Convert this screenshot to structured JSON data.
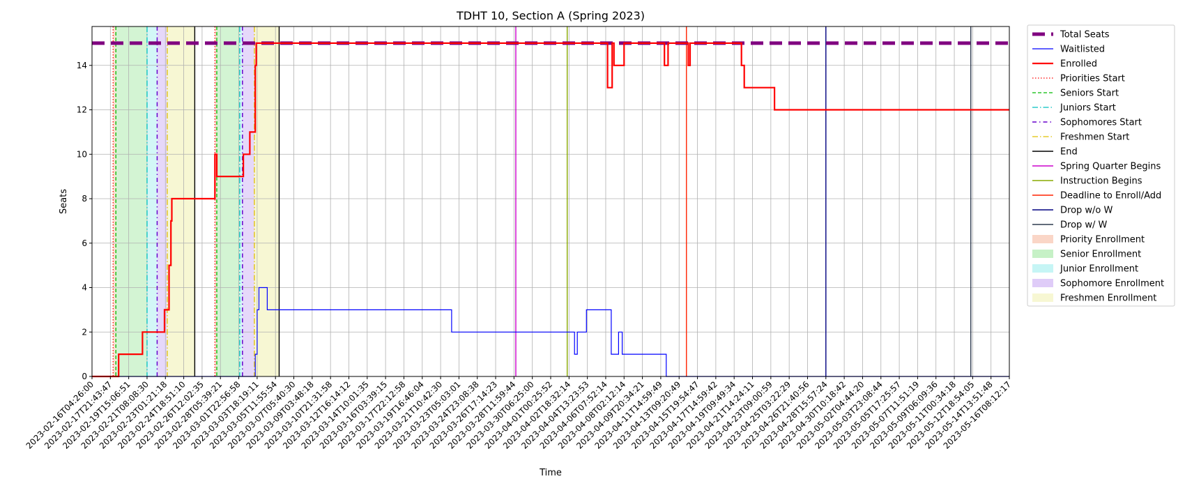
{
  "chart_data": {
    "type": "line",
    "title": "TDHT 10, Section A (Spring 2023)",
    "xlabel": "Time",
    "ylabel": "Seats",
    "ylim": [
      0,
      15.75
    ],
    "yticks": [
      0,
      2,
      4,
      6,
      8,
      10,
      12,
      14
    ],
    "grid": true,
    "legend_position": "outside-right",
    "x_tick_labels": [
      "2023-02-16T04:26:00",
      "2023-02-17T21:43:47",
      "2023-02-19T15:06:51",
      "2023-02-21T08:08:30",
      "2023-02-23T01:21:18",
      "2023-02-24T18:51:10",
      "2023-02-26T12:02:35",
      "2023-02-28T05:39:21",
      "2023-03-01T22:56:58",
      "2023-03-03T18:19:11",
      "2023-03-05T11:55:54",
      "2023-03-07T05:40:30",
      "2023-03-09T03:48:18",
      "2023-03-10T21:31:58",
      "2023-03-12T16:14:12",
      "2023-03-14T10:01:35",
      "2023-03-16T03:39:15",
      "2023-03-17T22:12:58",
      "2023-03-19T16:46:04",
      "2023-03-21T10:42:30",
      "2023-03-23T05:03:01",
      "2023-03-24T23:08:38",
      "2023-03-26T17:14:23",
      "2023-03-28T11:59:44",
      "2023-03-30T06:25:00",
      "2023-04-01T00:25:52",
      "2023-04-02T18:32:14",
      "2023-04-04T13:23:53",
      "2023-04-06T07:52:14",
      "2023-04-08T02:12:14",
      "2023-04-09T20:34:21",
      "2023-04-11T14:59:49",
      "2023-04-13T09:20:49",
      "2023-04-15T19:54:47",
      "2023-04-17T14:59:42",
      "2023-04-19T09:49:34",
      "2023-04-21T14:24:11",
      "2023-04-23T09:00:59",
      "2023-04-25T03:22:29",
      "2023-04-26T21:40:56",
      "2023-04-28T15:57:24",
      "2023-04-30T10:18:42",
      "2023-05-02T04:44:20",
      "2023-05-03T23:08:44",
      "2023-05-05T17:25:57",
      "2023-05-07T11:51:19",
      "2023-05-09T06:09:36",
      "2023-05-11T00:34:18",
      "2023-05-12T18:54:05",
      "2023-05-14T13:51:48",
      "2023-05-16T08:12:17"
    ],
    "x_tick_index": [
      0,
      1,
      2,
      3,
      4,
      5,
      6,
      7,
      8,
      9,
      10,
      11,
      12,
      13,
      14,
      15,
      16,
      17,
      18,
      19,
      20,
      21,
      22,
      23,
      24,
      25,
      26,
      27,
      28,
      29,
      30,
      31,
      32,
      33,
      34,
      35,
      36,
      37,
      38,
      39,
      40,
      41,
      42,
      43,
      44,
      45,
      46,
      47,
      48,
      49,
      50
    ],
    "series": [
      {
        "name": "Total Seats",
        "color": "#800080",
        "style": "dashed-thick",
        "points": [
          [
            0,
            15
          ],
          [
            50,
            15
          ]
        ]
      },
      {
        "name": "Waitlisted",
        "color": "#0000ff",
        "style": "solid-thin",
        "points": [
          [
            0,
            0
          ],
          [
            8.9,
            0
          ],
          [
            8.9,
            1
          ],
          [
            9.0,
            1
          ],
          [
            9.0,
            3
          ],
          [
            9.1,
            3
          ],
          [
            9.1,
            4
          ],
          [
            9.55,
            4
          ],
          [
            9.55,
            3
          ],
          [
            19.6,
            3
          ],
          [
            19.6,
            2
          ],
          [
            26.3,
            2
          ],
          [
            26.3,
            1
          ],
          [
            26.45,
            1
          ],
          [
            26.45,
            2
          ],
          [
            26.95,
            2
          ],
          [
            26.95,
            3
          ],
          [
            28.3,
            3
          ],
          [
            28.3,
            1
          ],
          [
            28.7,
            1
          ],
          [
            28.7,
            2
          ],
          [
            28.9,
            2
          ],
          [
            28.9,
            1
          ],
          [
            31.3,
            1
          ],
          [
            31.3,
            0
          ],
          [
            50,
            0
          ]
        ]
      },
      {
        "name": "Enrolled",
        "color": "#ff0000",
        "style": "solid-thick",
        "points": [
          [
            0,
            0
          ],
          [
            1.45,
            0
          ],
          [
            1.45,
            1
          ],
          [
            2.75,
            1
          ],
          [
            2.75,
            2
          ],
          [
            3.95,
            2
          ],
          [
            3.95,
            3
          ],
          [
            4.2,
            3
          ],
          [
            4.2,
            5
          ],
          [
            4.3,
            5
          ],
          [
            4.3,
            7
          ],
          [
            4.35,
            7
          ],
          [
            4.35,
            8
          ],
          [
            6.7,
            8
          ],
          [
            6.7,
            10
          ],
          [
            6.8,
            10
          ],
          [
            6.8,
            9
          ],
          [
            8.25,
            9
          ],
          [
            8.25,
            10
          ],
          [
            8.6,
            10
          ],
          [
            8.6,
            11
          ],
          [
            8.9,
            11
          ],
          [
            8.9,
            14
          ],
          [
            8.95,
            14
          ],
          [
            8.95,
            15
          ],
          [
            28.1,
            15
          ],
          [
            28.1,
            13
          ],
          [
            28.35,
            13
          ],
          [
            28.35,
            15
          ],
          [
            28.45,
            15
          ],
          [
            28.45,
            14
          ],
          [
            29.0,
            14
          ],
          [
            29.0,
            15
          ],
          [
            31.2,
            15
          ],
          [
            31.2,
            14
          ],
          [
            31.4,
            14
          ],
          [
            31.4,
            15
          ],
          [
            32.5,
            15
          ],
          [
            32.5,
            14
          ],
          [
            32.6,
            14
          ],
          [
            32.6,
            15
          ],
          [
            35.4,
            15
          ],
          [
            35.4,
            14
          ],
          [
            35.55,
            14
          ],
          [
            35.55,
            13
          ],
          [
            37.2,
            13
          ],
          [
            37.2,
            12
          ],
          [
            50,
            12
          ]
        ]
      }
    ],
    "event_lines": [
      {
        "name": "Priorities Start",
        "color": "#ff0000",
        "style": "dotted",
        "x": [
          1.15,
          6.7
        ]
      },
      {
        "name": "Seniors Start",
        "color": "#00bb00",
        "style": "dashed",
        "x": [
          1.3,
          6.8
        ]
      },
      {
        "name": "Juniors Start",
        "color": "#00bfbf",
        "style": "dashdot",
        "x": [
          3.0,
          8.05
        ]
      },
      {
        "name": "Sophomores Start",
        "color": "#6600cc",
        "style": "dashdot2",
        "x": [
          3.55,
          8.2
        ]
      },
      {
        "name": "Freshmen Start",
        "color": "#e0c000",
        "style": "dashdot",
        "x": [
          4.1,
          8.85
        ]
      },
      {
        "name": "End",
        "color": "#000000",
        "style": "solid",
        "x": [
          5.6,
          10.2
        ]
      },
      {
        "name": "Spring Quarter Begins",
        "color": "#cc00cc",
        "style": "solid",
        "x": [
          23.1
        ]
      },
      {
        "name": "Instruction Begins",
        "color": "#88aa00",
        "style": "solid",
        "x": [
          25.9
        ]
      },
      {
        "name": "Deadline to Enroll/Add",
        "color": "#ff2200",
        "style": "solid",
        "x": [
          32.4
        ]
      },
      {
        "name": "Drop w/o W",
        "color": "#000080",
        "style": "solid",
        "x": [
          40.0
        ]
      },
      {
        "name": "Drop w/ W",
        "color": "#2f3b4f",
        "style": "solid",
        "x": [
          47.9
        ]
      }
    ],
    "shaded_regions": [
      {
        "name": "Priority Enrollment",
        "color": "#f4a582",
        "opacity": 0.35,
        "ranges": [
          [
            1.15,
            1.3
          ],
          [
            6.7,
            6.8
          ]
        ]
      },
      {
        "name": "Senior Enrollment",
        "color": "#80e080",
        "opacity": 0.35,
        "ranges": [
          [
            1.3,
            3.0
          ],
          [
            6.8,
            8.05
          ]
        ]
      },
      {
        "name": "Junior Enrollment",
        "color": "#80e8e8",
        "opacity": 0.35,
        "ranges": [
          [
            3.0,
            3.55
          ],
          [
            8.05,
            8.2
          ]
        ]
      },
      {
        "name": "Sophomore Enrollment",
        "color": "#b88ff0",
        "opacity": 0.35,
        "ranges": [
          [
            3.55,
            4.1
          ],
          [
            8.2,
            8.85
          ]
        ]
      },
      {
        "name": "Freshmen Enrollment",
        "color": "#eded9e",
        "opacity": 0.45,
        "ranges": [
          [
            4.1,
            5.6
          ],
          [
            8.85,
            10.2
          ]
        ]
      }
    ]
  },
  "legend": [
    {
      "label": "Total Seats",
      "kind": "line",
      "color": "#800080",
      "style": "dashed-thick"
    },
    {
      "label": "Waitlisted",
      "kind": "line",
      "color": "#0000ff",
      "style": "solid-thin"
    },
    {
      "label": "Enrolled",
      "kind": "line",
      "color": "#ff0000",
      "style": "solid-thick"
    },
    {
      "label": "Priorities Start",
      "kind": "line",
      "color": "#ff0000",
      "style": "dotted"
    },
    {
      "label": "Seniors Start",
      "kind": "line",
      "color": "#00bb00",
      "style": "dashed"
    },
    {
      "label": "Juniors Start",
      "kind": "line",
      "color": "#00bfbf",
      "style": "dashdot"
    },
    {
      "label": "Sophomores Start",
      "kind": "line",
      "color": "#6600cc",
      "style": "dashdot2"
    },
    {
      "label": "Freshmen Start",
      "kind": "line",
      "color": "#e0c000",
      "style": "dashdot"
    },
    {
      "label": "End",
      "kind": "line",
      "color": "#000000",
      "style": "solid"
    },
    {
      "label": "Spring Quarter Begins",
      "kind": "line",
      "color": "#cc00cc",
      "style": "solid"
    },
    {
      "label": "Instruction Begins",
      "kind": "line",
      "color": "#88aa00",
      "style": "solid"
    },
    {
      "label": "Deadline to Enroll/Add",
      "kind": "line",
      "color": "#ff2200",
      "style": "solid"
    },
    {
      "label": "Drop w/o W",
      "kind": "line",
      "color": "#000080",
      "style": "solid"
    },
    {
      "label": "Drop w/ W",
      "kind": "line",
      "color": "#2f3b4f",
      "style": "solid"
    },
    {
      "label": "Priority Enrollment",
      "kind": "patch",
      "color": "#f4a582"
    },
    {
      "label": "Senior Enrollment",
      "kind": "patch",
      "color": "#80e080"
    },
    {
      "label": "Junior Enrollment",
      "kind": "patch",
      "color": "#80e8e8"
    },
    {
      "label": "Sophomore Enrollment",
      "kind": "patch",
      "color": "#b88ff0"
    },
    {
      "label": "Freshmen Enrollment",
      "kind": "patch",
      "color": "#eded9e"
    }
  ]
}
